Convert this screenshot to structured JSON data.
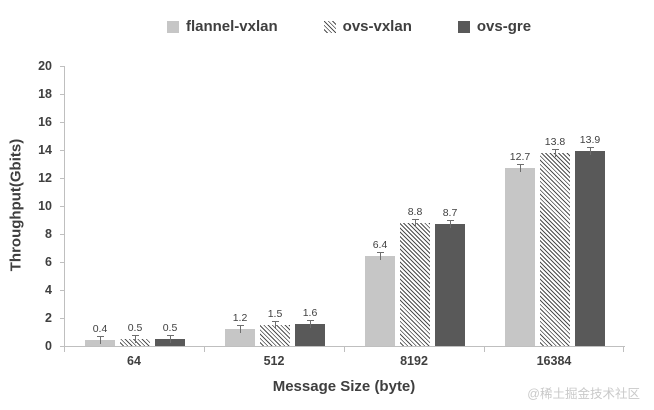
{
  "watermark": "@稀土掘金技术社区",
  "chart_data": {
    "type": "bar",
    "title": "",
    "xlabel": "Message Size (byte)",
    "ylabel": "Throughput(Gbits)",
    "ylim": [
      0,
      20
    ],
    "yticks": [
      0,
      2,
      4,
      6,
      8,
      10,
      12,
      14,
      16,
      18,
      20
    ],
    "grid": false,
    "legend_position": "top",
    "categories": [
      "64",
      "512",
      "8192",
      "16384"
    ],
    "series": [
      {
        "name": "flannel-vxlan",
        "style": "solid-light",
        "color": "#c6c6c6",
        "values": [
          0.4,
          1.2,
          6.4,
          12.7
        ]
      },
      {
        "name": "ovs-vxlan",
        "style": "hatched",
        "color": "#4f4f4f",
        "values": [
          0.5,
          1.5,
          8.8,
          13.8
        ]
      },
      {
        "name": "ovs-gre",
        "style": "solid-dark",
        "color": "#595959",
        "values": [
          0.5,
          1.6,
          8.7,
          13.9
        ]
      }
    ],
    "value_labels": true,
    "error_bars": true
  }
}
